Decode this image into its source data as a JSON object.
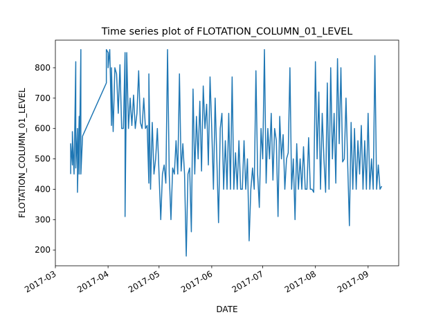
{
  "chart_data": {
    "type": "line",
    "title": "Time series plot of FLOTATION_COLUMN_01_LEVEL",
    "x_label": "DATE",
    "y_label": "FLOTATION_COLUMN_01_LEVEL",
    "color": "#1f77b4",
    "xlim": [
      "2017-03-01",
      "2017-09-19"
    ],
    "ylim": [
      148,
      891
    ],
    "xticks": [
      {
        "value": "2017-03-01",
        "label": "2017-03"
      },
      {
        "value": "2017-04-01",
        "label": "2017-04"
      },
      {
        "value": "2017-05-01",
        "label": "2017-05"
      },
      {
        "value": "2017-06-01",
        "label": "2017-06"
      },
      {
        "value": "2017-07-01",
        "label": "2017-07"
      },
      {
        "value": "2017-08-01",
        "label": "2017-08"
      },
      {
        "value": "2017-09-01",
        "label": "2017-09"
      }
    ],
    "yticks": [
      200,
      300,
      400,
      500,
      600,
      700,
      800
    ],
    "x": [
      "2017-03-10",
      "2017-03-10",
      "2017-03-11",
      "2017-03-11",
      "2017-03-12",
      "2017-03-13",
      "2017-03-13",
      "2017-03-14",
      "2017-03-14",
      "2017-03-15",
      "2017-03-15",
      "2017-03-16",
      "2017-03-16",
      "2017-03-17",
      "2017-03-31",
      "2017-03-31",
      "2017-04-01",
      "2017-04-01",
      "2017-04-02",
      "2017-04-03",
      "2017-04-03",
      "2017-04-04",
      "2017-04-05",
      "2017-04-06",
      "2017-04-07",
      "2017-04-08",
      "2017-04-09",
      "2017-04-10",
      "2017-04-11",
      "2017-04-11",
      "2017-04-12",
      "2017-04-13",
      "2017-04-14",
      "2017-04-15",
      "2017-04-16",
      "2017-04-17",
      "2017-04-18",
      "2017-04-19",
      "2017-04-20",
      "2017-04-21",
      "2017-04-22",
      "2017-04-23",
      "2017-04-24",
      "2017-04-25",
      "2017-04-25",
      "2017-04-26",
      "2017-04-27",
      "2017-04-28",
      "2017-04-29",
      "2017-04-30",
      "2017-05-01",
      "2017-05-02",
      "2017-05-03",
      "2017-05-04",
      "2017-05-05",
      "2017-05-06",
      "2017-05-07",
      "2017-05-08",
      "2017-05-09",
      "2017-05-10",
      "2017-05-11",
      "2017-05-12",
      "2017-05-13",
      "2017-05-14",
      "2017-05-15",
      "2017-05-16",
      "2017-05-17",
      "2017-05-18",
      "2017-05-19",
      "2017-05-20",
      "2017-05-21",
      "2017-05-22",
      "2017-05-23",
      "2017-05-24",
      "2017-05-25",
      "2017-05-26",
      "2017-05-27",
      "2017-05-28",
      "2017-05-29",
      "2017-05-30",
      "2017-05-31",
      "2017-06-01",
      "2017-06-02",
      "2017-06-03",
      "2017-06-04",
      "2017-06-05",
      "2017-06-06",
      "2017-06-07",
      "2017-06-08",
      "2017-06-09",
      "2017-06-10",
      "2017-06-11",
      "2017-06-12",
      "2017-06-13",
      "2017-06-14",
      "2017-06-15",
      "2017-06-16",
      "2017-06-17",
      "2017-06-18",
      "2017-06-19",
      "2017-06-20",
      "2017-06-21",
      "2017-06-22",
      "2017-06-23",
      "2017-06-24",
      "2017-06-25",
      "2017-06-26",
      "2017-06-27",
      "2017-06-28",
      "2017-06-29",
      "2017-06-30",
      "2017-07-01",
      "2017-07-02",
      "2017-07-03",
      "2017-07-04",
      "2017-07-05",
      "2017-07-06",
      "2017-07-07",
      "2017-07-08",
      "2017-07-09",
      "2017-07-10",
      "2017-07-11",
      "2017-07-12",
      "2017-07-13",
      "2017-07-14",
      "2017-07-15",
      "2017-07-16",
      "2017-07-17",
      "2017-07-18",
      "2017-07-19",
      "2017-07-20",
      "2017-07-21",
      "2017-07-22",
      "2017-07-23",
      "2017-07-24",
      "2017-07-25",
      "2017-07-26",
      "2017-07-27",
      "2017-07-28",
      "2017-07-29",
      "2017-07-30",
      "2017-07-31",
      "2017-08-01",
      "2017-08-02",
      "2017-08-03",
      "2017-08-04",
      "2017-08-05",
      "2017-08-06",
      "2017-08-07",
      "2017-08-08",
      "2017-08-09",
      "2017-08-10",
      "2017-08-11",
      "2017-08-12",
      "2017-08-13",
      "2017-08-14",
      "2017-08-15",
      "2017-08-16",
      "2017-08-17",
      "2017-08-18",
      "2017-08-19",
      "2017-08-20",
      "2017-08-21",
      "2017-08-22",
      "2017-08-23",
      "2017-08-24",
      "2017-08-25",
      "2017-08-26",
      "2017-08-27",
      "2017-08-28",
      "2017-08-29",
      "2017-08-30",
      "2017-08-31",
      "2017-09-01",
      "2017-09-02",
      "2017-09-03",
      "2017-09-04",
      "2017-09-05",
      "2017-09-06",
      "2017-09-07",
      "2017-09-08",
      "2017-09-09"
    ],
    "values": [
      450,
      550,
      480,
      590,
      450,
      820,
      470,
      600,
      390,
      640,
      450,
      860,
      450,
      575,
      750,
      860,
      850,
      800,
      860,
      610,
      800,
      590,
      800,
      780,
      650,
      810,
      600,
      600,
      850,
      310,
      850,
      600,
      700,
      610,
      710,
      600,
      650,
      790,
      620,
      600,
      700,
      600,
      610,
      420,
      780,
      400,
      620,
      450,
      500,
      600,
      450,
      300,
      450,
      480,
      420,
      860,
      450,
      300,
      470,
      450,
      560,
      450,
      780,
      460,
      550,
      450,
      180,
      450,
      470,
      260,
      730,
      450,
      640,
      500,
      690,
      460,
      740,
      600,
      680,
      480,
      770,
      600,
      400,
      700,
      500,
      290,
      600,
      650,
      400,
      560,
      400,
      650,
      400,
      770,
      400,
      520,
      400,
      560,
      400,
      400,
      560,
      400,
      500,
      230,
      400,
      470,
      400,
      790,
      450,
      340,
      600,
      500,
      860,
      420,
      600,
      500,
      650,
      430,
      600,
      560,
      310,
      640,
      500,
      580,
      400,
      500,
      520,
      800,
      400,
      500,
      300,
      550,
      400,
      500,
      400,
      540,
      400,
      400,
      570,
      400,
      400,
      390,
      820,
      500,
      720,
      400,
      650,
      500,
      390,
      750,
      400,
      800,
      500,
      650,
      420,
      830,
      550,
      800,
      490,
      500,
      700,
      480,
      280,
      620,
      400,
      600,
      400,
      560,
      450,
      610,
      400,
      560,
      400,
      650,
      400,
      500,
      400,
      840,
      400,
      480,
      400,
      410
    ]
  }
}
